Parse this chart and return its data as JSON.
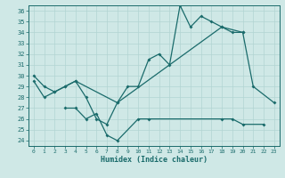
{
  "xlabel": "Humidex (Indice chaleur)",
  "xlim": [
    -0.5,
    23.5
  ],
  "ylim": [
    23.5,
    36.5
  ],
  "yticks": [
    24,
    25,
    26,
    27,
    28,
    29,
    30,
    31,
    32,
    33,
    34,
    35,
    36
  ],
  "xticks": [
    0,
    1,
    2,
    3,
    4,
    5,
    6,
    7,
    8,
    9,
    10,
    11,
    12,
    13,
    14,
    15,
    16,
    17,
    18,
    19,
    20,
    21,
    22,
    23
  ],
  "background_color": "#cfe8e6",
  "grid_color": "#b2d4d2",
  "line_color": "#1a6b6b",
  "line1_x": [
    0,
    1,
    2,
    3,
    4,
    5,
    6,
    7,
    8,
    9,
    10,
    11,
    12,
    13,
    14,
    15,
    16,
    17,
    18,
    19,
    20,
    21,
    23
  ],
  "line1_y": [
    30.0,
    29.0,
    28.5,
    29.0,
    29.5,
    28.0,
    26.0,
    25.5,
    27.5,
    29.0,
    29.0,
    31.5,
    32.0,
    31.0,
    36.5,
    34.5,
    35.5,
    35.0,
    34.5,
    34.0,
    34.0,
    29.0,
    27.5
  ],
  "line2_x": [
    0,
    1,
    2,
    3,
    4,
    8,
    18,
    20
  ],
  "line2_y": [
    29.5,
    28.0,
    28.5,
    29.0,
    29.5,
    27.5,
    34.5,
    34.0
  ],
  "line3_x": [
    3,
    4,
    5,
    6,
    7,
    8,
    10,
    11,
    18,
    19,
    20,
    22
  ],
  "line3_y": [
    27.0,
    27.0,
    26.0,
    26.5,
    24.5,
    24.0,
    26.0,
    26.0,
    26.0,
    26.0,
    25.5,
    25.5
  ]
}
